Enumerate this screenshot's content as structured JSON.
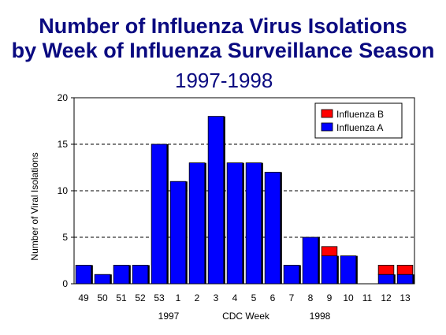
{
  "title": {
    "line1": "Number of Influenza Virus Isolations",
    "line2": "by Week of Influenza Surveillance Season",
    "line3": "1997-1998"
  },
  "colors": {
    "influenza_a": "#0000ff",
    "influenza_b": "#ff0000",
    "title": "#0a0a80"
  },
  "chart_data": {
    "type": "bar",
    "stacked": true,
    "categories": [
      "49",
      "50",
      "51",
      "52",
      "53",
      "1",
      "2",
      "3",
      "4",
      "5",
      "6",
      "7",
      "8",
      "9",
      "10",
      "11",
      "12",
      "13"
    ],
    "series": [
      {
        "name": "Influenza A",
        "color": "#0000ff",
        "values": [
          2,
          1,
          2,
          2,
          15,
          11,
          13,
          18,
          13,
          13,
          12,
          2,
          5,
          3,
          3,
          0,
          1,
          1
        ]
      },
      {
        "name": "Influenza B",
        "color": "#ff0000",
        "values": [
          0,
          0,
          0,
          0,
          0,
          0,
          0,
          0,
          0,
          0,
          0,
          0,
          0,
          1,
          0,
          0,
          1,
          1
        ]
      }
    ],
    "ylabel": "Number of Viral Isolations",
    "xlabel": "CDC Week",
    "year_labels": [
      {
        "text": "1997",
        "category": "1"
      },
      {
        "text": "1998",
        "category": "9"
      }
    ],
    "ylim": [
      0,
      20
    ],
    "yticks": [
      0,
      5,
      10,
      15,
      20
    ],
    "grid": "horizontal-dashed",
    "legend": "top-right",
    "legend_order": [
      "Influenza B",
      "Influenza A"
    ]
  }
}
